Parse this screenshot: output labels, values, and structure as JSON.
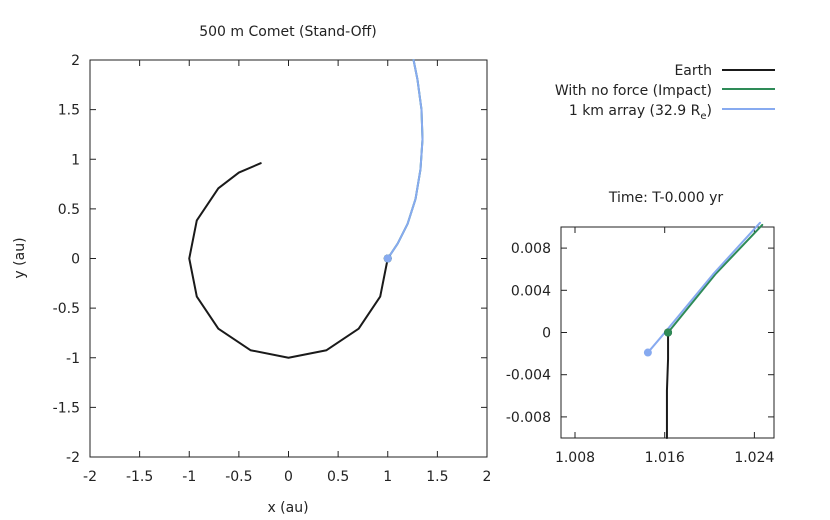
{
  "chart_data": [
    {
      "type": "line",
      "title": "500 m Comet (Stand-Off)",
      "xlabel": "x (au)",
      "ylabel": "y (au)",
      "xlim": [
        -2,
        2
      ],
      "ylim": [
        -2,
        2
      ],
      "xticks": [
        "-2",
        "-1.5",
        "-1",
        "-0.5",
        "0",
        "0.5",
        "1",
        "1.5",
        "2"
      ],
      "yticks": [
        "-2",
        "-1.5",
        "-1",
        "-0.5",
        "0",
        "0.5",
        "1",
        "1.5",
        "2"
      ],
      "legend": [
        {
          "name": "Earth",
          "color": "#1a1a1a"
        },
        {
          "name": "With no force (Impact)",
          "color": "#2e8b57"
        },
        {
          "name": "1 km array (32.9 R",
          "subscript": "e",
          "suffix": ")",
          "color": "#87aaf0"
        }
      ],
      "series": [
        {
          "name": "Earth",
          "color": "#1a1a1a",
          "points": [
            [
              1.0,
              0.0
            ],
            [
              0.924,
              -0.383
            ],
            [
              0.707,
              -0.707
            ],
            [
              0.383,
              -0.924
            ],
            [
              0.0,
              -1.0
            ],
            [
              -0.383,
              -0.924
            ],
            [
              -0.707,
              -0.707
            ],
            [
              -0.924,
              -0.383
            ],
            [
              -1.0,
              0.0
            ],
            [
              -0.924,
              0.383
            ],
            [
              -0.707,
              0.707
            ],
            [
              -0.5,
              0.866
            ],
            [
              -0.28,
              0.96
            ]
          ]
        },
        {
          "name": "With no force (Impact)",
          "color": "#2e8b57",
          "points": [
            [
              1.0,
              0.0
            ],
            [
              1.1,
              0.15
            ],
            [
              1.2,
              0.35
            ],
            [
              1.28,
              0.6
            ],
            [
              1.33,
              0.9
            ],
            [
              1.35,
              1.2
            ],
            [
              1.34,
              1.5
            ],
            [
              1.3,
              1.8
            ],
            [
              1.26,
              2.0
            ]
          ]
        },
        {
          "name": "1 km array (32.9 Re)",
          "color": "#87aaf0",
          "points": [
            [
              1.0,
              0.0
            ],
            [
              1.1,
              0.15
            ],
            [
              1.2,
              0.35
            ],
            [
              1.28,
              0.6
            ],
            [
              1.33,
              0.9
            ],
            [
              1.35,
              1.2
            ],
            [
              1.34,
              1.5
            ],
            [
              1.3,
              1.8
            ],
            [
              1.26,
              2.0
            ]
          ]
        }
      ],
      "markers": [
        {
          "name": "Earth",
          "x": 1.0,
          "y": 0.0,
          "color": "#1a1a1a"
        },
        {
          "name": "With no force (Impact)",
          "x": 1.0,
          "y": 0.0,
          "color": "#2e8b57"
        },
        {
          "name": "1 km array (32.9 Re)",
          "x": 1.0,
          "y": 0.0,
          "color": "#87aaf0"
        }
      ]
    },
    {
      "type": "line",
      "title": "Time: T-0.000 yr",
      "xlabel": "",
      "ylabel": "",
      "xlim": [
        1.00675,
        1.02575
      ],
      "ylim": [
        -0.01,
        0.01
      ],
      "xticks": [
        "1.008",
        "1.016",
        "1.024"
      ],
      "yticks": [
        "-0.008",
        "-0.004",
        "0",
        "0.004",
        "0.008"
      ],
      "series": [
        {
          "name": "Earth",
          "color": "#1a1a1a",
          "points": [
            [
              1.0163,
              0.0
            ],
            [
              1.0163,
              -0.0025
            ],
            [
              1.0162,
              -0.0055
            ],
            [
              1.0162,
              -0.01
            ]
          ]
        },
        {
          "name": "With no force (Impact)",
          "color": "#2e8b57",
          "points": [
            [
              1.0163,
              0.0
            ],
            [
              1.0205,
              0.0055
            ],
            [
              1.0247,
              0.0102
            ]
          ]
        },
        {
          "name": "1 km array (32.9 Re)",
          "color": "#87aaf0",
          "points": [
            [
              1.0145,
              -0.0019
            ],
            [
              1.0161,
              0.0001
            ],
            [
              1.0203,
              0.0055
            ],
            [
              1.0245,
              0.0104
            ]
          ]
        }
      ],
      "markers": [
        {
          "name": "Earth",
          "x": 1.0163,
          "y": 0.0,
          "color": "#1a1a1a"
        },
        {
          "name": "With no force (Impact)",
          "x": 1.0163,
          "y": 0.0,
          "color": "#2e8b57"
        },
        {
          "name": "1 km array (32.9 Re)",
          "x": 1.0145,
          "y": -0.0019,
          "color": "#87aaf0"
        }
      ]
    }
  ]
}
